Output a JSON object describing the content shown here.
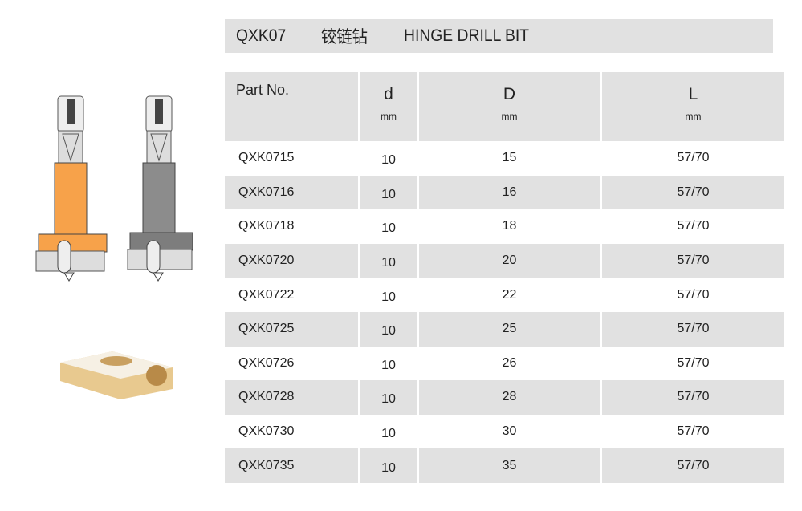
{
  "title": {
    "code": "QXK07",
    "name_cn": "铰链钻",
    "name_en": "HINGE DRILL BIT"
  },
  "table": {
    "headers": [
      {
        "label": "Part No.",
        "unit": ""
      },
      {
        "label": "d",
        "unit": "mm"
      },
      {
        "label": "D",
        "unit": "mm"
      },
      {
        "label": "L",
        "unit": "mm"
      }
    ],
    "rows": [
      [
        "QXK0715",
        "10",
        "15",
        "57/70"
      ],
      [
        "QXK0716",
        "10",
        "16",
        "57/70"
      ],
      [
        "QXK0718",
        "10",
        "18",
        "57/70"
      ],
      [
        "QXK0720",
        "10",
        "20",
        "57/70"
      ],
      [
        "QXK0722",
        "10",
        "22",
        "57/70"
      ],
      [
        "QXK0725",
        "10",
        "25",
        "57/70"
      ],
      [
        "QXK0726",
        "10",
        "26",
        "57/70"
      ],
      [
        "QXK0728",
        "10",
        "28",
        "57/70"
      ],
      [
        "QXK0730",
        "10",
        "30",
        "57/70"
      ],
      [
        "QXK0735",
        "10",
        "35",
        "57/70"
      ]
    ]
  },
  "colors": {
    "orange": "#f7a24a",
    "gray": "#8c8c8c",
    "header_bg": "#e1e1e1"
  }
}
